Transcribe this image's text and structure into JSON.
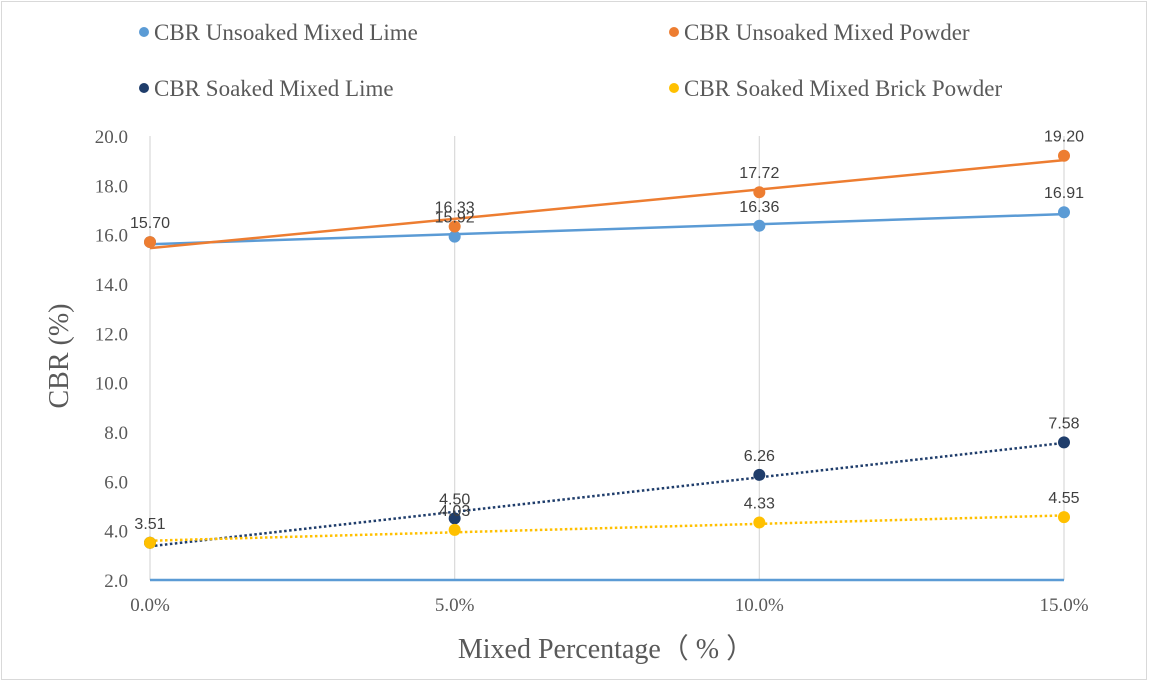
{
  "chart_data": {
    "type": "line",
    "title": "",
    "xlabel": "Mixed Percentage（ % ）",
    "ylabel": "CBR (%)",
    "categories": [
      "0.0%",
      "5.0%",
      "10.0%",
      "15.0%"
    ],
    "x": [
      0,
      5,
      10,
      15
    ],
    "ylim": [
      2.0,
      20.0
    ],
    "y_ticks": [
      "2.0",
      "4.0",
      "6.0",
      "8.0",
      "10.0",
      "12.0",
      "14.0",
      "16.0",
      "18.0",
      "20.0"
    ],
    "grid": {
      "vertical": true,
      "horizontal": false
    },
    "legend_position": "top",
    "series": [
      {
        "name": "CBR Unsoaked Mixed Lime",
        "color": "#5b9bd5",
        "values": [
          15.7,
          15.92,
          16.36,
          16.91
        ],
        "labels": [
          "15.70",
          "15.92",
          "16.36",
          "16.91"
        ],
        "trendline": "solid"
      },
      {
        "name": "CBR Unsoaked Mixed Powder",
        "color": "#ed7d31",
        "values": [
          15.7,
          16.33,
          17.72,
          19.2
        ],
        "labels": [
          "",
          "16.33",
          "17.72",
          "19.20"
        ],
        "trendline": "solid"
      },
      {
        "name": "CBR Soaked Mixed Lime",
        "color": "#1f3d6b",
        "values": [
          3.51,
          4.5,
          6.26,
          7.58
        ],
        "labels": [
          "3.51",
          "4.50",
          "6.26",
          "7.58"
        ],
        "trendline": "dotted"
      },
      {
        "name": "CBR Soaked Mixed Brick Powder",
        "color": "#ffc000",
        "values": [
          3.51,
          4.03,
          4.33,
          4.55
        ],
        "labels": [
          "",
          "4.03",
          "4.33",
          "4.55"
        ],
        "trendline": "dotted"
      }
    ]
  }
}
